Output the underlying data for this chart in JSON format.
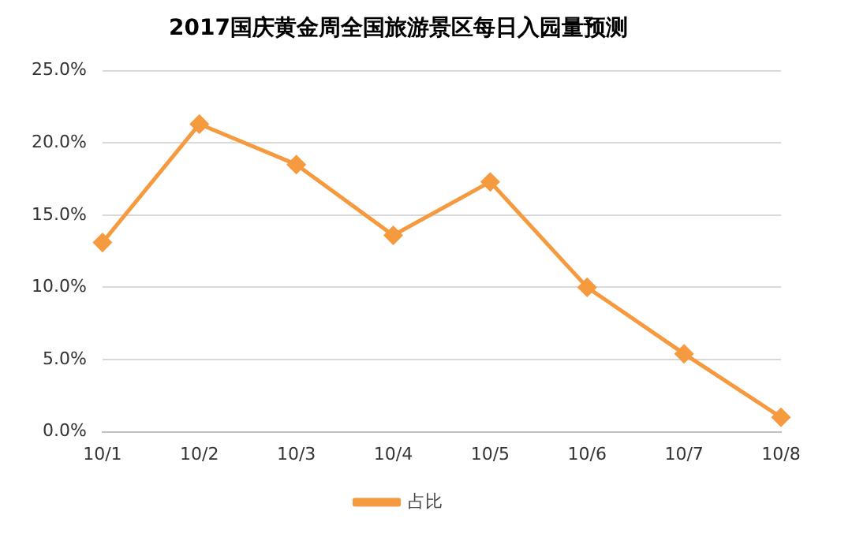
{
  "chart_data": {
    "type": "line",
    "title": "2017国庆黄金周全国旅游景区每日入园量预测",
    "categories": [
      "10/1",
      "10/2",
      "10/3",
      "10/4",
      "10/5",
      "10/6",
      "10/7",
      "10/8"
    ],
    "series": [
      {
        "name": "占比",
        "color": "#f59a3e",
        "values": [
          13.1,
          21.3,
          18.5,
          13.6,
          17.3,
          10.0,
          5.4,
          1.0
        ]
      }
    ],
    "ylim": [
      0,
      25
    ],
    "yticks": [
      {
        "value": 0,
        "label": "0.0%"
      },
      {
        "value": 5,
        "label": "5.0%"
      },
      {
        "value": 10,
        "label": "10.0%"
      },
      {
        "value": 15,
        "label": "15.0%"
      },
      {
        "value": 20,
        "label": "20.0%"
      },
      {
        "value": 25,
        "label": "25.0%"
      }
    ],
    "grid": "y",
    "legend": "bottom",
    "marker": "diamond",
    "line_style": "solid"
  }
}
